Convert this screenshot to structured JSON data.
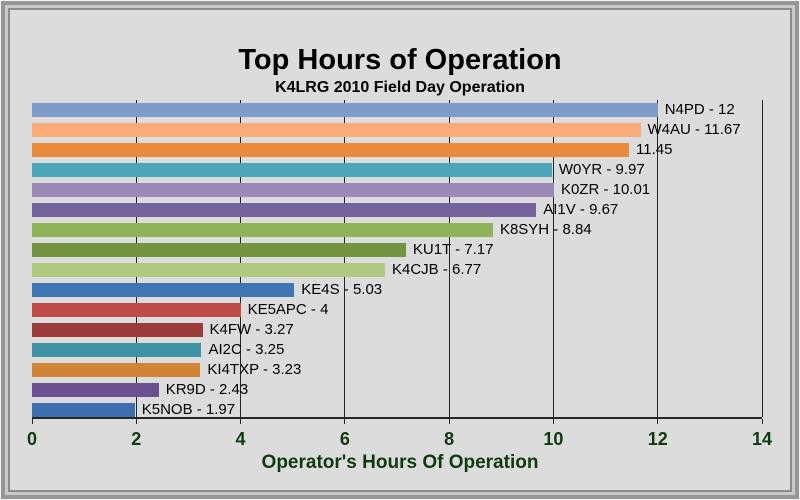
{
  "chart_data": {
    "type": "bar",
    "orientation": "horizontal",
    "title": "Top Hours of Operation",
    "subtitle": "K4LRG 2010 Field Day Operation",
    "xlabel": "Operator's Hours Of Operation",
    "xlim": [
      0,
      14
    ],
    "xticks": [
      0,
      2,
      4,
      6,
      8,
      10,
      12,
      14
    ],
    "grid": "vertical gridlines at major ticks, drawn behind bars",
    "legend": "none",
    "bars": [
      {
        "label": "N4PD - 12",
        "operator": "N4PD",
        "value": 12,
        "color": "#7E9BC9"
      },
      {
        "label": "W4AU - 11.67",
        "operator": "W4AU",
        "value": 11.67,
        "color": "#FAAC78"
      },
      {
        "label": "11.45",
        "value": 11.45,
        "color": "#E8893C"
      },
      {
        "label": "W0YR - 9.97",
        "operator": "W0YR",
        "value": 9.97,
        "color": "#4AA6B8"
      },
      {
        "label": "K0ZR - 10.01",
        "operator": "K0ZR",
        "value": 10.01,
        "color": "#9B89B8"
      },
      {
        "label": "AI1V - 9.67",
        "operator": "AI1V",
        "value": 9.67,
        "color": "#75639B"
      },
      {
        "label": "K8SYH - 8.84",
        "operator": "K8SYH",
        "value": 8.84,
        "color": "#8FB457"
      },
      {
        "label": "KU1T - 7.17",
        "operator": "KU1T",
        "value": 7.17,
        "color": "#739440"
      },
      {
        "label": "K4CJB - 6.77",
        "operator": "K4CJB",
        "value": 6.77,
        "color": "#B0C981"
      },
      {
        "label": "KE4S - 5.03",
        "operator": "KE4S",
        "value": 5.03,
        "color": "#4075B4"
      },
      {
        "label": "KE5APC - 4",
        "operator": "KE5APC",
        "value": 4,
        "color": "#BF4B47"
      },
      {
        "label": "K4FW - 3.27",
        "operator": "K4FW",
        "value": 3.27,
        "color": "#9D3A3A"
      },
      {
        "label": "AI2C - 3.25",
        "operator": "AI2C",
        "value": 3.25,
        "color": "#3E92A6"
      },
      {
        "label": "KI4TXP - 3.23",
        "operator": "KI4TXP",
        "value": 3.23,
        "color": "#D28436"
      },
      {
        "label": "KR9D - 2.43",
        "operator": "KR9D",
        "value": 2.43,
        "color": "#6B5192"
      },
      {
        "label": "K5NOB - 1.97",
        "operator": "K5NOB",
        "value": 1.97,
        "color": "#3D6FB0"
      }
    ]
  },
  "colors": {
    "chart_background": "#DCDCDC",
    "frame_outer": "#969696",
    "frame_light": "#C9C9C9",
    "frame_inner": "#8C8C8C",
    "gridline": "#262626",
    "axis_line": "#262626",
    "axis_text": "#0E3A0E",
    "title_text": "#000000",
    "bar_label_text": "#000000"
  }
}
